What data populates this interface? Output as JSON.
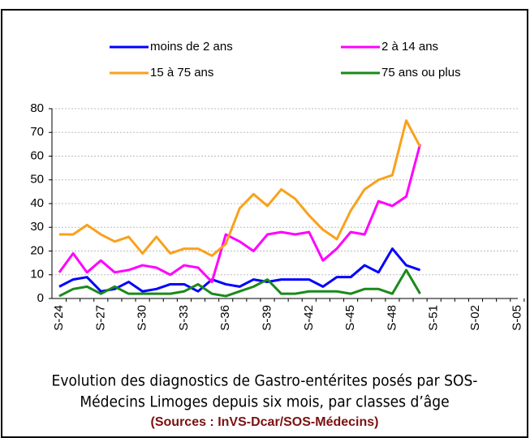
{
  "chart_data": {
    "type": "line",
    "categories": [
      "S-24",
      null,
      null,
      "S-27",
      null,
      null,
      "S-30",
      null,
      null,
      "S-33",
      null,
      null,
      "S-36",
      null,
      null,
      "S-39",
      null,
      null,
      "S-42",
      null,
      null,
      "S-45",
      null,
      null,
      "S-48",
      null,
      null,
      "S-51",
      null,
      null,
      "S-02",
      null,
      null,
      "S-05"
    ],
    "series": [
      {
        "name": "moins de 2 ans",
        "color": "#0000ff",
        "values": [
          5,
          8,
          9,
          3,
          4,
          7,
          3,
          4,
          6,
          6,
          3,
          8,
          6,
          5,
          8,
          7,
          8,
          8,
          8,
          5,
          9,
          9,
          14,
          11,
          21,
          14,
          12,
          null,
          null,
          null,
          null,
          null,
          null,
          null
        ]
      },
      {
        "name": "2 à 14 ans",
        "color": "#ff00ff",
        "values": [
          11,
          19,
          11,
          16,
          11,
          12,
          14,
          13,
          10,
          14,
          13,
          7,
          27,
          24,
          20,
          27,
          28,
          27,
          28,
          16,
          21,
          28,
          27,
          41,
          39,
          43,
          65,
          null,
          null,
          null,
          null,
          null,
          null,
          null
        ]
      },
      {
        "name": "15 à 75 ans",
        "color": "#f9a11b",
        "values": [
          27,
          27,
          31,
          27,
          24,
          26,
          19,
          26,
          19,
          21,
          21,
          18,
          23,
          38,
          44,
          39,
          46,
          42,
          35,
          29,
          25,
          37,
          46,
          50,
          52,
          75,
          64,
          null,
          null,
          null,
          null,
          null,
          null,
          null
        ]
      },
      {
        "name": "75 ans ou plus",
        "color": "#1a8a1a",
        "values": [
          1,
          4,
          5,
          2,
          5,
          2,
          2,
          2,
          2,
          3,
          6,
          2,
          1,
          3,
          5,
          8,
          2,
          2,
          3,
          3,
          3,
          2,
          4,
          4,
          2,
          12,
          2,
          null,
          null,
          null,
          null,
          null,
          null,
          null
        ]
      }
    ],
    "ylim": [
      0,
      80
    ],
    "yticks": [
      0,
      10,
      20,
      30,
      40,
      50,
      60,
      70,
      80
    ],
    "grid": true,
    "caption": [
      "Evolution des diagnostics de Gastro-entérites posés par SOS-",
      "Médecins Limoges depuis six mois, par classes d’âge"
    ],
    "source": "(Sources : InVS-Dcar/SOS-Médecins)"
  }
}
